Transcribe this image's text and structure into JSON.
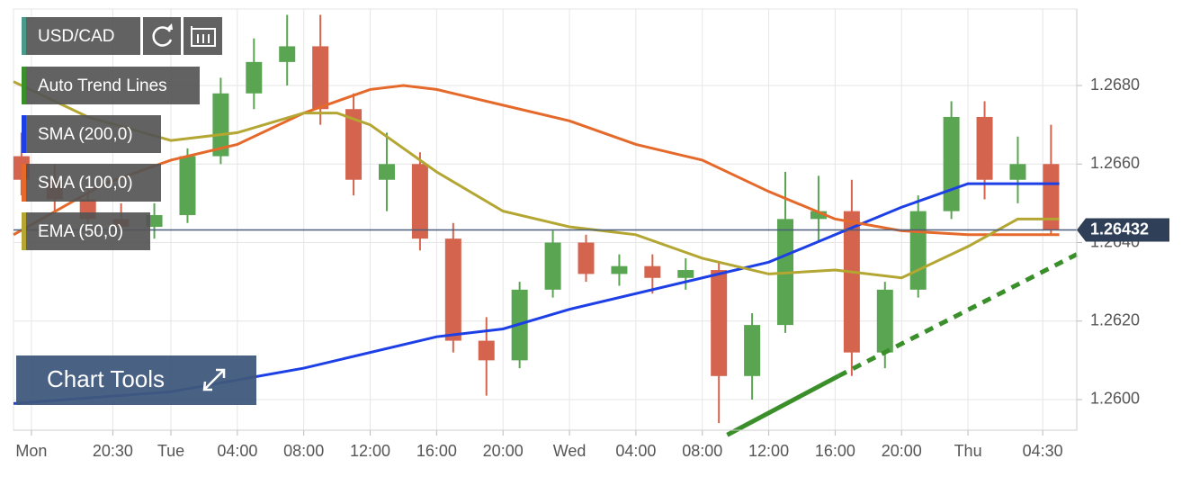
{
  "chart_data": {
    "type": "candlestick",
    "symbol": "USD/CAD",
    "chart_tools": "Chart Tools",
    "x": [
      -9,
      -7,
      -5,
      -3,
      -1,
      1,
      3,
      5,
      7,
      9,
      11,
      13,
      15,
      17,
      19,
      21,
      23,
      25,
      27,
      29,
      31,
      33,
      35,
      37,
      39,
      41,
      43,
      45,
      47,
      49,
      51,
      53
    ],
    "open": [
      1.2662,
      1.2656,
      1.2651,
      1.2646,
      1.2644,
      1.2647,
      1.2662,
      1.2678,
      1.2686,
      1.269,
      1.2674,
      1.2656,
      1.266,
      1.2641,
      1.2615,
      1.261,
      1.2628,
      1.264,
      1.2632,
      1.2634,
      1.2631,
      1.2633,
      1.2606,
      1.2619,
      1.2646,
      1.2648,
      1.2612,
      1.2628,
      1.2648,
      1.2672,
      1.2656,
      1.266
    ],
    "high": [
      1.2668,
      1.266,
      1.2654,
      1.265,
      1.265,
      1.2664,
      1.2682,
      1.2692,
      1.2698,
      1.2698,
      1.2678,
      1.2668,
      1.2663,
      1.2645,
      1.2621,
      1.263,
      1.2643,
      1.2642,
      1.2637,
      1.2637,
      1.2636,
      1.2635,
      1.2622,
      1.2658,
      1.2657,
      1.2656,
      1.263,
      1.2652,
      1.2676,
      1.2676,
      1.2667,
      1.267
    ],
    "low": [
      1.2652,
      1.2648,
      1.2644,
      1.2641,
      1.2641,
      1.2645,
      1.266,
      1.2674,
      1.268,
      1.267,
      1.2652,
      1.2648,
      1.2638,
      1.2612,
      1.2601,
      1.2608,
      1.2626,
      1.263,
      1.2629,
      1.2627,
      1.2628,
      1.2594,
      1.26,
      1.2617,
      1.264,
      1.2606,
      1.2608,
      1.2626,
      1.2646,
      1.2651,
      1.265,
      1.2642
    ],
    "close": [
      1.2656,
      1.2651,
      1.2646,
      1.2644,
      1.2647,
      1.2662,
      1.2678,
      1.2686,
      1.269,
      1.2674,
      1.2656,
      1.266,
      1.2641,
      1.2615,
      1.261,
      1.2628,
      1.264,
      1.2632,
      1.2634,
      1.2631,
      1.2633,
      1.2606,
      1.2619,
      1.2646,
      1.2648,
      1.2612,
      1.2628,
      1.2648,
      1.2672,
      1.2656,
      1.266,
      1.26432
    ],
    "up_color": "#5aa552",
    "down_color": "#d4644e",
    "series": [
      {
        "name": "SMA (200,0)",
        "color": "#1d3fe6",
        "x": [
          -9.48,
          0,
          8,
          16,
          20,
          24,
          32,
          36,
          40,
          44,
          48,
          53.5
        ],
        "values": [
          1.2599,
          1.2602,
          1.2608,
          1.2616,
          1.2618,
          1.2623,
          1.2631,
          1.2635,
          1.2642,
          1.2649,
          1.2655,
          1.2655
        ]
      },
      {
        "name": "SMA (100,0)",
        "color": "#e5692a",
        "x": [
          -9.48,
          -4,
          0,
          4,
          8,
          12,
          14,
          16,
          20,
          24,
          28,
          32,
          36,
          40,
          44,
          48,
          53.5
        ],
        "values": [
          1.2642,
          1.2655,
          1.2661,
          1.2665,
          1.2673,
          1.2679,
          1.268,
          1.2679,
          1.2675,
          1.2671,
          1.2665,
          1.2661,
          1.2653,
          1.2646,
          1.2643,
          1.2642,
          1.2642
        ]
      },
      {
        "name": "EMA (50,0)",
        "color": "#b3a632",
        "x": [
          -9.48,
          -5,
          0,
          4,
          8,
          10,
          12,
          16,
          20,
          24,
          28,
          32,
          36,
          40,
          44,
          48,
          51,
          53.5
        ],
        "values": [
          1.2681,
          1.2672,
          1.2666,
          1.2668,
          1.2673,
          1.2673,
          1.267,
          1.2658,
          1.2648,
          1.2644,
          1.2642,
          1.2636,
          1.2632,
          1.2633,
          1.2631,
          1.2639,
          1.2646,
          1.2646
        ]
      }
    ],
    "trend_line": {
      "name": "Auto Trend Lines",
      "color": "#3a8f2a",
      "x": [
        33.5,
        40.2,
        54.55
      ],
      "values": [
        1.2591,
        1.2606,
        1.2637
      ]
    },
    "last_price": 1.26432,
    "xlim": [
      -9.48,
      54.55
    ],
    "ylim": [
      1.25922,
      1.26995
    ],
    "xticks": [
      {
        "value": -8.4,
        "label": "Mon"
      },
      {
        "value": -3.5,
        "label": "20:30"
      },
      {
        "value": 0,
        "label": "Tue"
      },
      {
        "value": 4,
        "label": "04:00"
      },
      {
        "value": 8,
        "label": "08:00"
      },
      {
        "value": 12,
        "label": "12:00"
      },
      {
        "value": 16,
        "label": "16:00"
      },
      {
        "value": 20,
        "label": "20:00"
      },
      {
        "value": 24,
        "label": "Wed"
      },
      {
        "value": 28,
        "label": "04:00"
      },
      {
        "value": 32,
        "label": "08:00"
      },
      {
        "value": 36,
        "label": "12:00"
      },
      {
        "value": 40,
        "label": "16:00"
      },
      {
        "value": 44,
        "label": "20:00"
      },
      {
        "value": 48,
        "label": "Thu"
      },
      {
        "value": 52.5,
        "label": "04:30"
      }
    ],
    "yticks": [
      {
        "value": 1.26,
        "label": "1.2600"
      },
      {
        "value": 1.262,
        "label": "1.2620"
      },
      {
        "value": 1.264,
        "label": "1.2640"
      },
      {
        "value": 1.266,
        "label": "1.2660"
      },
      {
        "value": 1.268,
        "label": "1.2680"
      }
    ],
    "grid": true
  }
}
